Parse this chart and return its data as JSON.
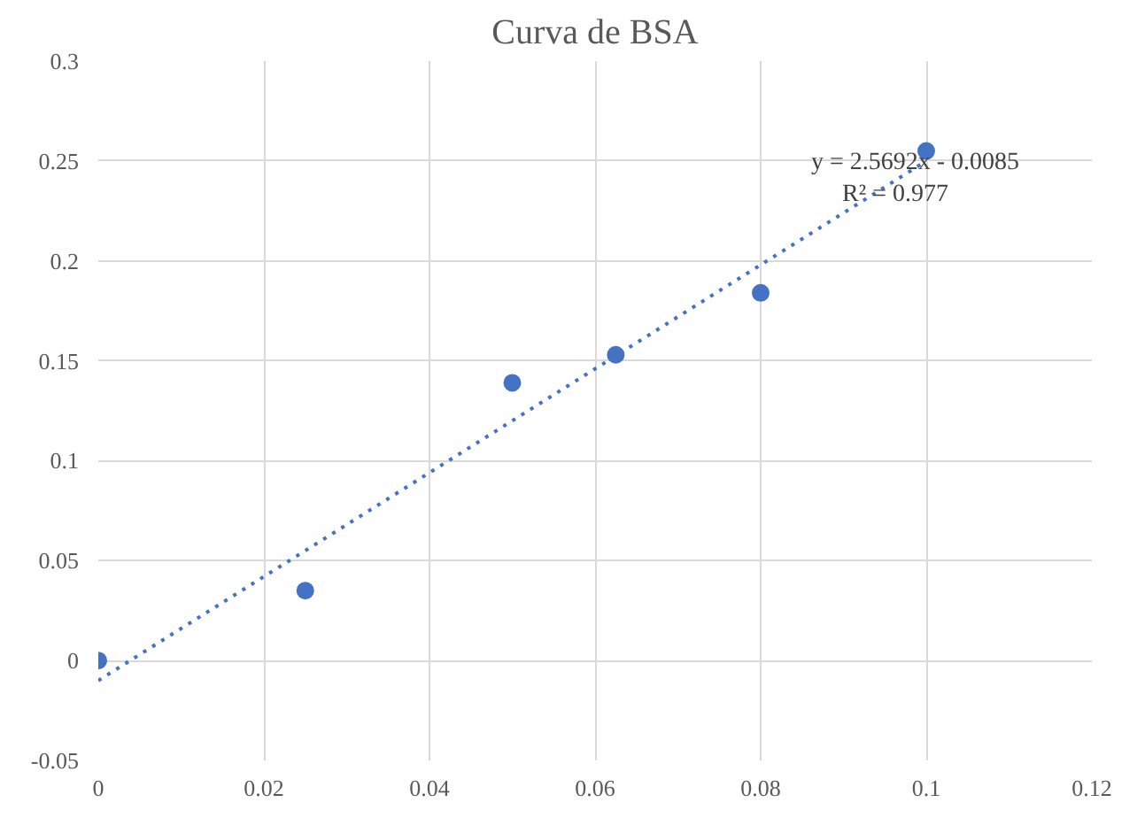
{
  "chart_data": {
    "type": "scatter",
    "title": "Curva de BSA",
    "series": [
      {
        "color": "#4472c4",
        "marker": "circle",
        "x": [
          0,
          0.025,
          0.05,
          0.0625,
          0.08,
          0.1
        ],
        "values": [
          0,
          0.035,
          0.139,
          0.153,
          0.184,
          0.255
        ]
      },
      {
        "type": "line",
        "color": "#4472c4",
        "marker": "none",
        "line_style": "dotted",
        "x": [
          0,
          0.1
        ],
        "values": [
          -0.01,
          0.25
        ]
      }
    ],
    "xlim": [
      0,
      0.12
    ],
    "xticks": [
      0,
      0.02,
      0.04,
      0.06,
      0.08,
      0.1,
      0.12
    ],
    "ylim": [
      -0.05,
      0.3
    ],
    "yticks": [
      -0.05,
      0,
      0.05,
      0.1,
      0.15,
      0.2,
      0.25,
      0.3
    ],
    "grid": true,
    "annotations": [
      "y = 2.5692x - 0.0085",
      "R² = 0.977"
    ]
  }
}
